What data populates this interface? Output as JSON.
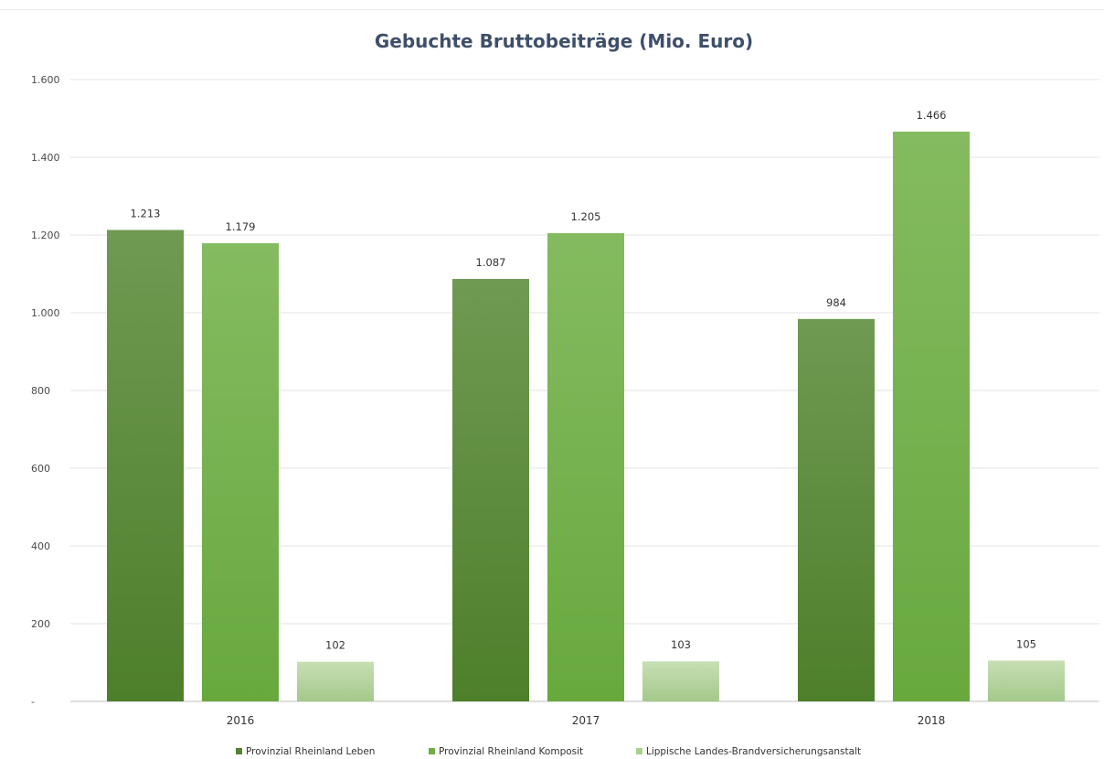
{
  "chart_data": {
    "type": "bar",
    "title": "Gebuchte Bruttobeiträge (Mio. Euro)",
    "xlabel": "",
    "ylabel": "",
    "categories": [
      "2016",
      "2017",
      "2018"
    ],
    "ylim": [
      0,
      1600
    ],
    "yticks": [
      0,
      200,
      400,
      600,
      800,
      1000,
      1200,
      1400,
      1600
    ],
    "ytick_labels": [
      "-",
      "200",
      "400",
      "600",
      "800",
      "1.000",
      "1.200",
      "1.400",
      "1.600"
    ],
    "grid": true,
    "legend_position": "bottom",
    "series": [
      {
        "name": "Provinzial Rheinland Leben",
        "color": "#548235",
        "values": [
          1213,
          1087,
          984
        ],
        "labels": [
          "1.213",
          "1.087",
          "984"
        ]
      },
      {
        "name": "Provinzial Rheinland Komposit",
        "color": "#70ad47",
        "values": [
          1179,
          1205,
          1466
        ],
        "labels": [
          "1.179",
          "1.205",
          "1.466"
        ]
      },
      {
        "name": "Lippische Landes-Brandversicherungsanstalt",
        "color": "#a9d18e",
        "values": [
          102,
          103,
          105
        ],
        "labels": [
          "102",
          "103",
          "105"
        ]
      }
    ]
  }
}
